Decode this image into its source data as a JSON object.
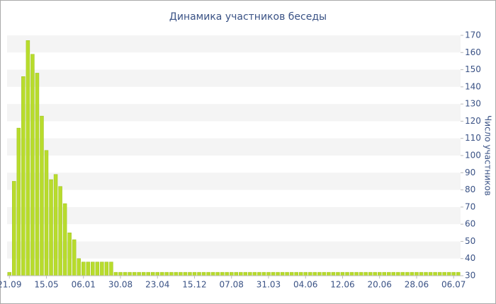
{
  "chart_data": {
    "type": "bar",
    "title": "Динамика участников беседы",
    "y_label": "Число участников",
    "categories": [
      "21.09",
      null,
      null,
      null,
      null,
      null,
      null,
      null,
      "15.05",
      null,
      null,
      null,
      null,
      null,
      null,
      null,
      "06.01",
      null,
      null,
      null,
      null,
      null,
      null,
      null,
      "30.08",
      null,
      null,
      null,
      null,
      null,
      null,
      null,
      "23.04",
      null,
      null,
      null,
      null,
      null,
      null,
      null,
      "15.12",
      null,
      null,
      null,
      null,
      null,
      null,
      null,
      "07.08",
      null,
      null,
      null,
      null,
      null,
      null,
      null,
      "31.03",
      null,
      null,
      null,
      null,
      null,
      null,
      null,
      "04.06",
      null,
      null,
      null,
      null,
      null,
      null,
      null,
      "12.06",
      null,
      null,
      null,
      null,
      null,
      null,
      null,
      "20.06",
      null,
      null,
      null,
      null,
      null,
      null,
      null,
      "28.06",
      null,
      null,
      null,
      null,
      null,
      null,
      null,
      "06.07",
      null
    ],
    "values": [
      32,
      85,
      116,
      146,
      167,
      159,
      148,
      123,
      103,
      86,
      89,
      82,
      72,
      55,
      51,
      40,
      38,
      38,
      38,
      38,
      38,
      38,
      38,
      32,
      32,
      32,
      32,
      32,
      32,
      32,
      32,
      32,
      32,
      32,
      32,
      32,
      32,
      32,
      32,
      32,
      32,
      32,
      32,
      32,
      32,
      32,
      32,
      32,
      32,
      32,
      32,
      32,
      32,
      32,
      32,
      32,
      32,
      32,
      32,
      32,
      32,
      32,
      32,
      32,
      32,
      32,
      32,
      32,
      32,
      32,
      32,
      32,
      32,
      32,
      32,
      32,
      32,
      32,
      32,
      32,
      32,
      32,
      32,
      32,
      32,
      32,
      32,
      32,
      32,
      32,
      32,
      32,
      32,
      32,
      32,
      32,
      32,
      32
    ],
    "color": "#b8dc2c",
    "ylim": [
      30,
      170
    ],
    "yticks": [
      30,
      40,
      50,
      60,
      70,
      80,
      90,
      100,
      110,
      120,
      130,
      140,
      150,
      160,
      170
    ],
    "grid": "bands",
    "y_axis_side": "right"
  }
}
